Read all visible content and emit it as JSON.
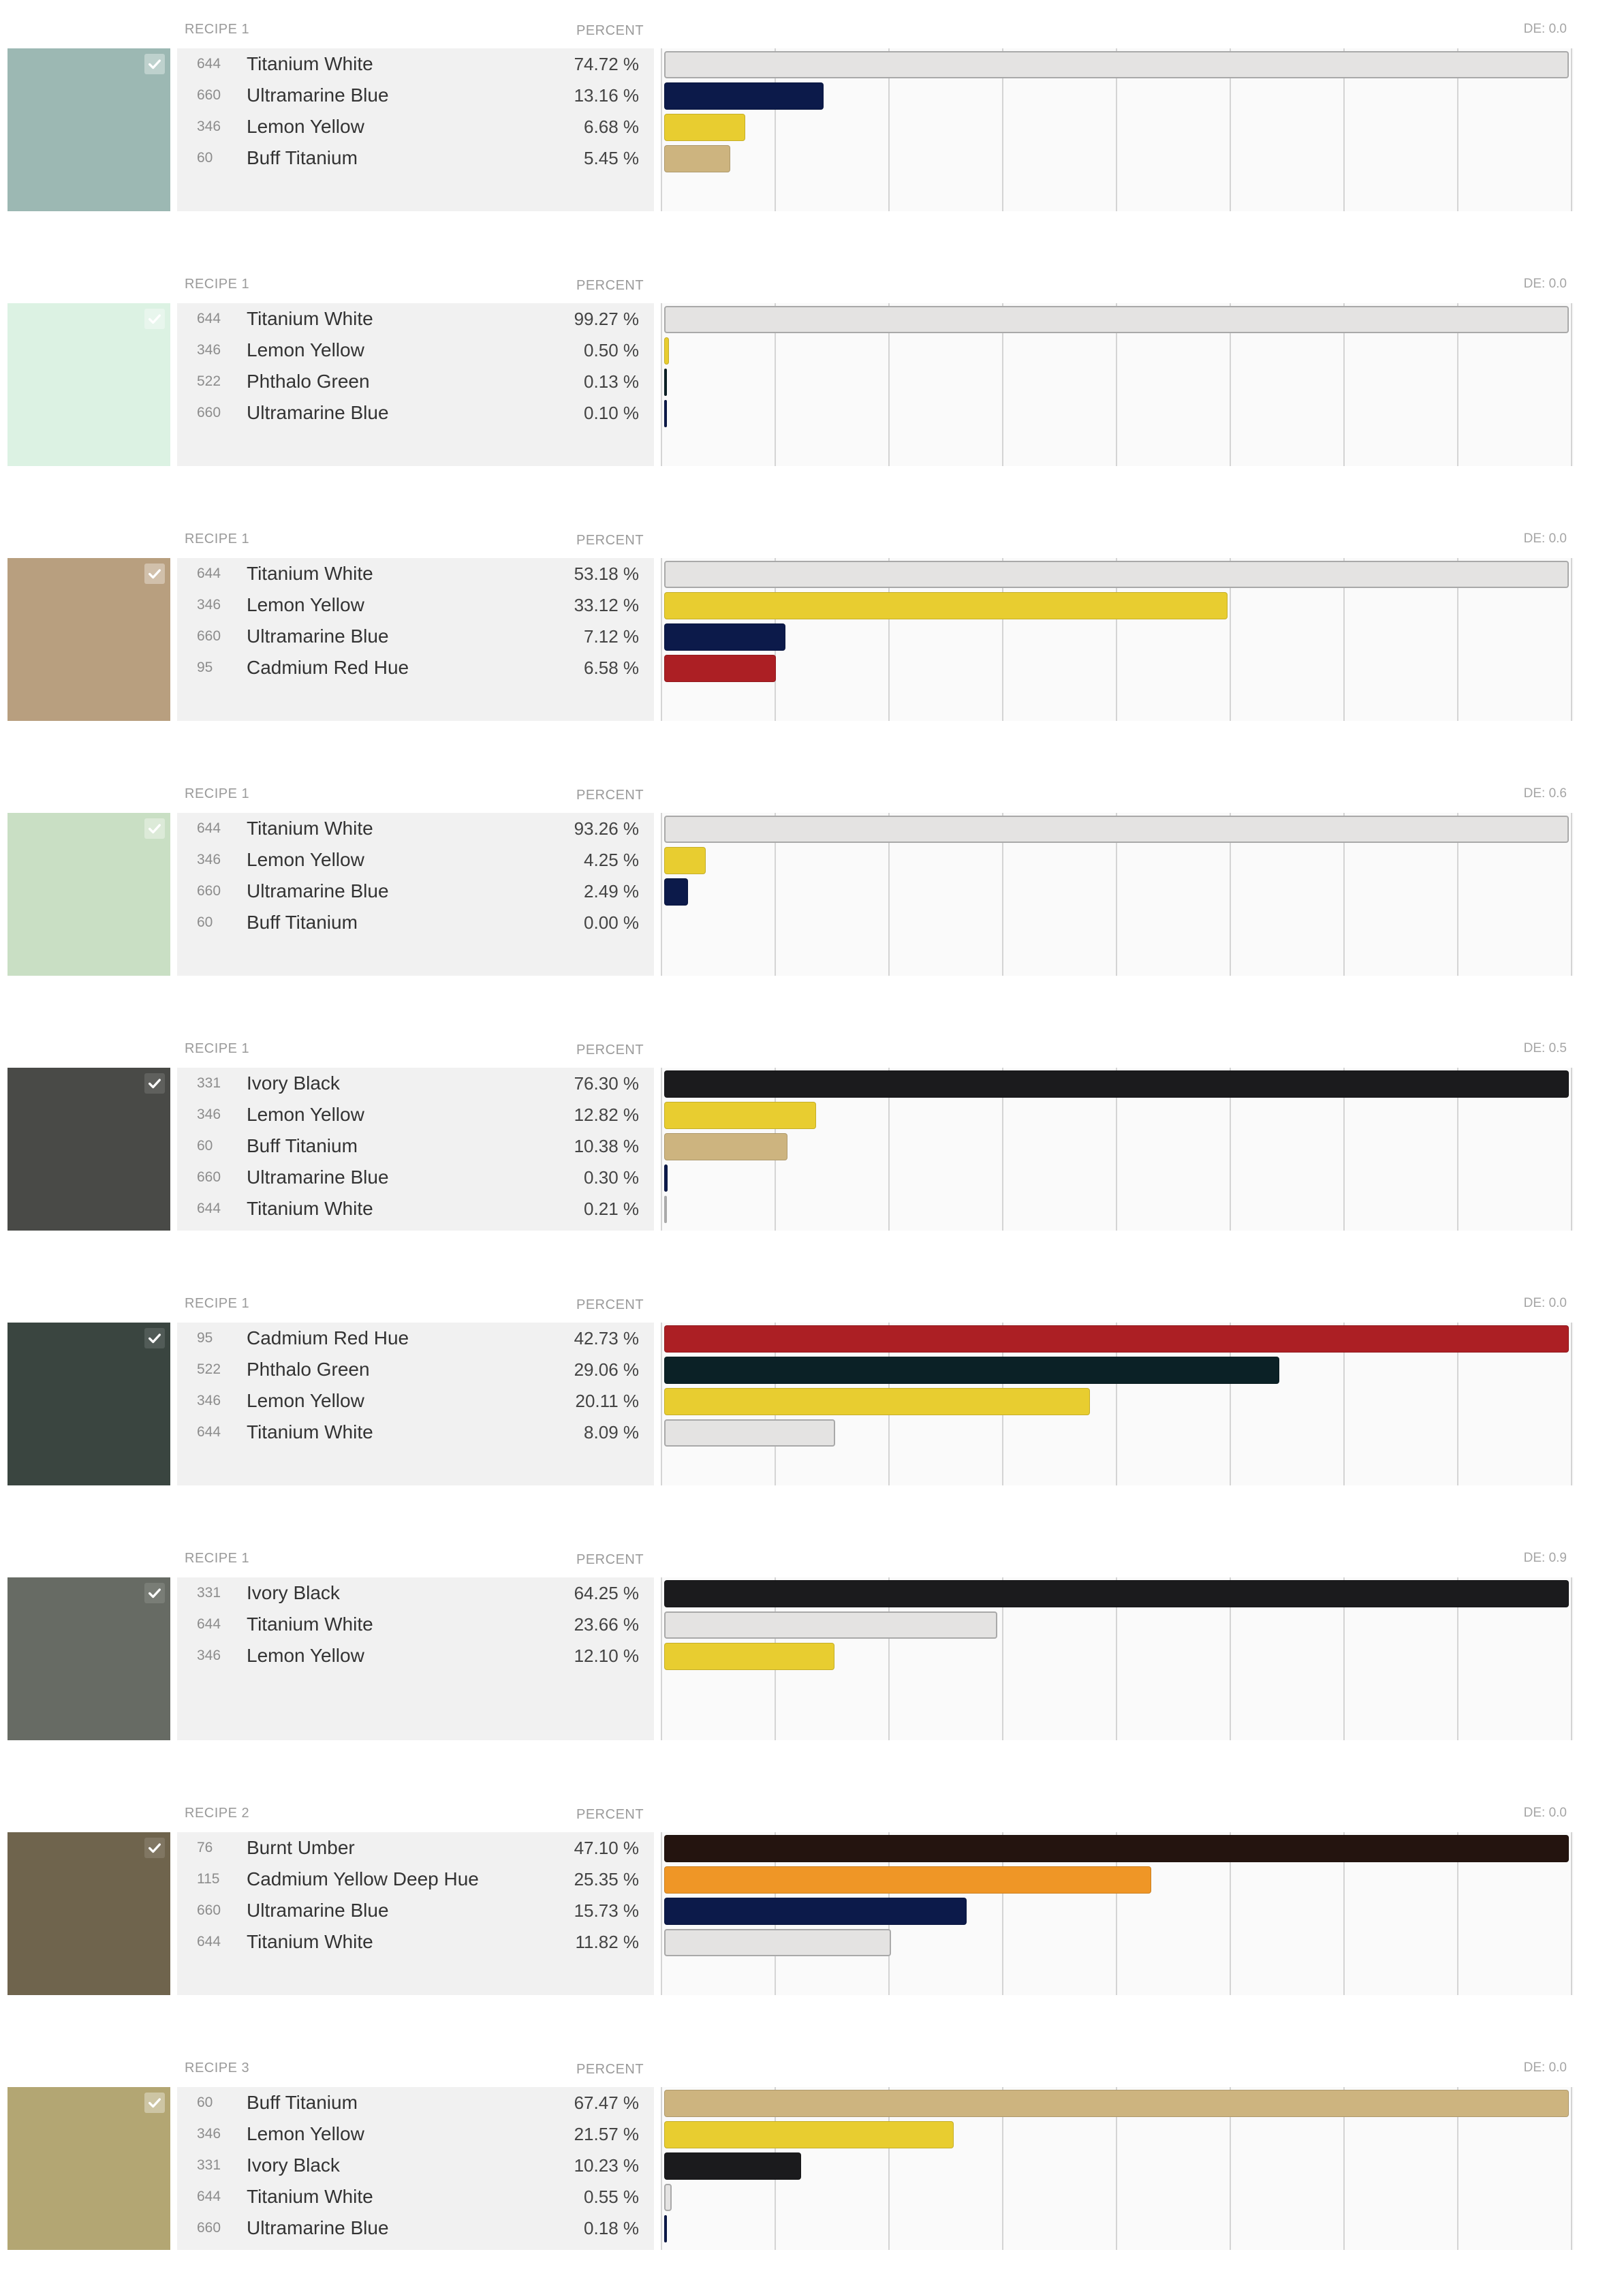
{
  "check_icon": "check-icon",
  "recipes": [
    {
      "recipe_label": "RECIPE 1",
      "percent_header": "PERCENT",
      "de": "DE: 0.0",
      "swatch_color": "#9cb8b3",
      "ingredients": [
        {
          "code": "644",
          "name": "Titanium White",
          "percent": "74.72 %",
          "value": 74.72,
          "color": "#e4e3e2"
        },
        {
          "code": "660",
          "name": "Ultramarine Blue",
          "percent": "13.16 %",
          "value": 13.16,
          "color": "#0c1a4a"
        },
        {
          "code": "346",
          "name": "Lemon Yellow",
          "percent": "6.68 %",
          "value": 6.68,
          "color": "#e8cd30"
        },
        {
          "code": "60",
          "name": "Buff Titanium",
          "percent": "5.45 %",
          "value": 5.45,
          "color": "#cdb47f"
        }
      ]
    },
    {
      "recipe_label": "RECIPE 1",
      "percent_header": "PERCENT",
      "de": "DE: 0.0",
      "swatch_color": "#dcf2e3",
      "ingredients": [
        {
          "code": "644",
          "name": "Titanium White",
          "percent": "99.27 %",
          "value": 99.27,
          "color": "#e4e3e2"
        },
        {
          "code": "346",
          "name": "Lemon Yellow",
          "percent": "0.50 %",
          "value": 0.5,
          "color": "#e8cd30"
        },
        {
          "code": "522",
          "name": "Phthalo Green",
          "percent": "0.13 %",
          "value": 0.13,
          "color": "#0b2126"
        },
        {
          "code": "660",
          "name": "Ultramarine Blue",
          "percent": "0.10 %",
          "value": 0.1,
          "color": "#0c1a4a"
        }
      ]
    },
    {
      "recipe_label": "RECIPE 1",
      "percent_header": "PERCENT",
      "de": "DE: 0.0",
      "swatch_color": "#b89f7f",
      "ingredients": [
        {
          "code": "644",
          "name": "Titanium White",
          "percent": "53.18 %",
          "value": 53.18,
          "color": "#e4e3e2"
        },
        {
          "code": "346",
          "name": "Lemon Yellow",
          "percent": "33.12 %",
          "value": 33.12,
          "color": "#e8cd30"
        },
        {
          "code": "660",
          "name": "Ultramarine Blue",
          "percent": "7.12 %",
          "value": 7.12,
          "color": "#0c1a4a"
        },
        {
          "code": "95",
          "name": "Cadmium Red Hue",
          "percent": "6.58 %",
          "value": 6.58,
          "color": "#ac1f24"
        }
      ]
    },
    {
      "recipe_label": "RECIPE 1",
      "percent_header": "PERCENT",
      "de": "DE: 0.6",
      "swatch_color": "#c9dfc4",
      "ingredients": [
        {
          "code": "644",
          "name": "Titanium White",
          "percent": "93.26 %",
          "value": 93.26,
          "color": "#e4e3e2"
        },
        {
          "code": "346",
          "name": "Lemon Yellow",
          "percent": "4.25 %",
          "value": 4.25,
          "color": "#e8cd30"
        },
        {
          "code": "660",
          "name": "Ultramarine Blue",
          "percent": "2.49 %",
          "value": 2.49,
          "color": "#0c1a4a"
        },
        {
          "code": "60",
          "name": "Buff Titanium",
          "percent": "0.00 %",
          "value": 0,
          "color": "#cdb47f"
        }
      ]
    },
    {
      "recipe_label": "RECIPE 1",
      "percent_header": "PERCENT",
      "de": "DE: 0.5",
      "swatch_color": "#494a47",
      "ingredients": [
        {
          "code": "331",
          "name": "Ivory Black",
          "percent": "76.30 %",
          "value": 76.3,
          "color": "#1b1b1d"
        },
        {
          "code": "346",
          "name": "Lemon Yellow",
          "percent": "12.82 %",
          "value": 12.82,
          "color": "#e8cd30"
        },
        {
          "code": "60",
          "name": "Buff Titanium",
          "percent": "10.38 %",
          "value": 10.38,
          "color": "#cdb47f"
        },
        {
          "code": "660",
          "name": "Ultramarine Blue",
          "percent": "0.30 %",
          "value": 0.3,
          "color": "#0c1a4a"
        },
        {
          "code": "644",
          "name": "Titanium White",
          "percent": "0.21 %",
          "value": 0.21,
          "color": "#e4e3e2"
        }
      ]
    },
    {
      "recipe_label": "RECIPE 1",
      "percent_header": "PERCENT",
      "de": "DE: 0.0",
      "swatch_color": "#3a4540",
      "ingredients": [
        {
          "code": "95",
          "name": "Cadmium Red Hue",
          "percent": "42.73 %",
          "value": 42.73,
          "color": "#ac1f24"
        },
        {
          "code": "522",
          "name": "Phthalo Green",
          "percent": "29.06 %",
          "value": 29.06,
          "color": "#0b2126"
        },
        {
          "code": "346",
          "name": "Lemon Yellow",
          "percent": "20.11 %",
          "value": 20.11,
          "color": "#e8cd30"
        },
        {
          "code": "644",
          "name": "Titanium White",
          "percent": "8.09 %",
          "value": 8.09,
          "color": "#e4e3e2"
        }
      ]
    },
    {
      "recipe_label": "RECIPE 1",
      "percent_header": "PERCENT",
      "de": "DE: 0.9",
      "swatch_color": "#676b64",
      "ingredients": [
        {
          "code": "331",
          "name": "Ivory Black",
          "percent": "64.25 %",
          "value": 64.25,
          "color": "#1b1b1d"
        },
        {
          "code": "644",
          "name": "Titanium White",
          "percent": "23.66 %",
          "value": 23.66,
          "color": "#e4e3e2"
        },
        {
          "code": "346",
          "name": "Lemon Yellow",
          "percent": "12.10 %",
          "value": 12.1,
          "color": "#e8cd30"
        }
      ]
    },
    {
      "recipe_label": "RECIPE 2",
      "percent_header": "PERCENT",
      "de": "DE: 0.0",
      "swatch_color": "#6f644d",
      "ingredients": [
        {
          "code": "76",
          "name": "Burnt Umber",
          "percent": "47.10 %",
          "value": 47.1,
          "color": "#24140f"
        },
        {
          "code": "115",
          "name": "Cadmium Yellow Deep Hue",
          "percent": "25.35 %",
          "value": 25.35,
          "color": "#ef9626"
        },
        {
          "code": "660",
          "name": "Ultramarine Blue",
          "percent": "15.73 %",
          "value": 15.73,
          "color": "#0c1a4a"
        },
        {
          "code": "644",
          "name": "Titanium White",
          "percent": "11.82 %",
          "value": 11.82,
          "color": "#e4e3e2"
        }
      ]
    },
    {
      "recipe_label": "RECIPE 3",
      "percent_header": "PERCENT",
      "de": "DE: 0.0",
      "swatch_color": "#b3a673",
      "ingredients": [
        {
          "code": "60",
          "name": "Buff Titanium",
          "percent": "67.47 %",
          "value": 67.47,
          "color": "#cdb47f"
        },
        {
          "code": "346",
          "name": "Lemon Yellow",
          "percent": "21.57 %",
          "value": 21.57,
          "color": "#e8cd30"
        },
        {
          "code": "331",
          "name": "Ivory Black",
          "percent": "10.23 %",
          "value": 10.23,
          "color": "#1b1b1d"
        },
        {
          "code": "644",
          "name": "Titanium White",
          "percent": "0.55 %",
          "value": 0.55,
          "color": "#e4e3e2"
        },
        {
          "code": "660",
          "name": "Ultramarine Blue",
          "percent": "0.18 %",
          "value": 0.18,
          "color": "#0c1a4a"
        }
      ]
    }
  ]
}
